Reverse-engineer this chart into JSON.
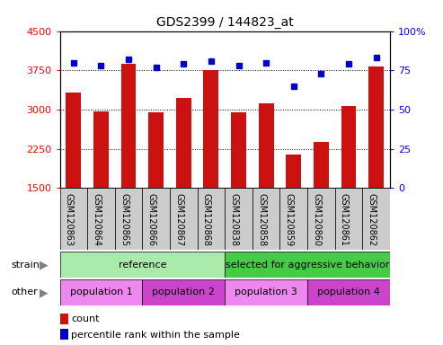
{
  "title": "GDS2399 / 144823_at",
  "samples": [
    "GSM120863",
    "GSM120864",
    "GSM120865",
    "GSM120866",
    "GSM120867",
    "GSM120868",
    "GSM120838",
    "GSM120858",
    "GSM120859",
    "GSM120860",
    "GSM120861",
    "GSM120862"
  ],
  "counts": [
    3320,
    2960,
    3870,
    2940,
    3230,
    3750,
    2940,
    3120,
    2140,
    2380,
    3070,
    3820
  ],
  "percentile_ranks": [
    80,
    78,
    82,
    77,
    79,
    81,
    78,
    80,
    65,
    73,
    79,
    83
  ],
  "bar_color": "#cc1111",
  "dot_color": "#0000cc",
  "ylim_left": [
    1500,
    4500
  ],
  "ylim_right": [
    0,
    100
  ],
  "yticks_left": [
    1500,
    2250,
    3000,
    3750,
    4500
  ],
  "yticks_right": [
    0,
    25,
    50,
    75,
    100
  ],
  "strain_groups": [
    {
      "label": "reference",
      "start": 0,
      "end": 6,
      "color": "#aaeaaa"
    },
    {
      "label": "selected for aggressive behavior",
      "start": 6,
      "end": 12,
      "color": "#44cc44"
    }
  ],
  "other_groups": [
    {
      "label": "population 1",
      "start": 0,
      "end": 3,
      "color": "#ee88ee"
    },
    {
      "label": "population 2",
      "start": 3,
      "end": 6,
      "color": "#cc44cc"
    },
    {
      "label": "population 3",
      "start": 6,
      "end": 9,
      "color": "#ee88ee"
    },
    {
      "label": "population 4",
      "start": 9,
      "end": 12,
      "color": "#cc44cc"
    }
  ],
  "strain_label": "strain",
  "other_label": "other",
  "legend_count_label": "count",
  "legend_pct_label": "percentile rank within the sample",
  "bar_bottom": 1500,
  "xlabel_bg": "#cccccc"
}
